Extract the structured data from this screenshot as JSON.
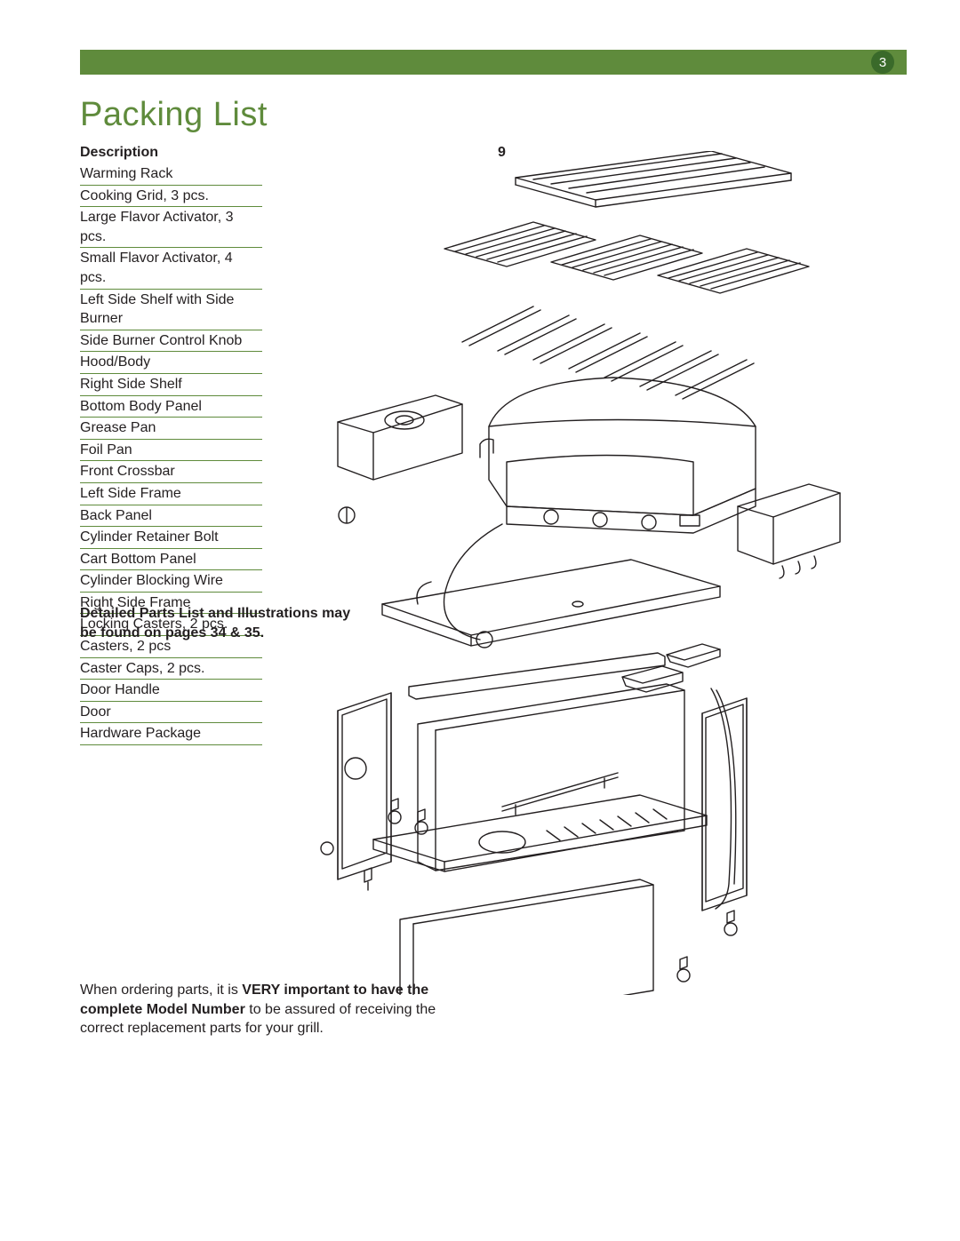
{
  "page": {
    "number": "3",
    "header_bar_color": "#5f8b3c",
    "circle_color": "#3a6a2a"
  },
  "title": "Packing List",
  "list": {
    "header": "Description",
    "items": [
      "Warming Rack",
      "Cooking Grid, 3 pcs.",
      "Large Flavor Activator, 3 pcs.",
      "Small Flavor Activator, 4 pcs.",
      "Left Side Shelf with Side Burner",
      "Side Burner Control Knob",
      "Hood/Body",
      "Right Side Shelf",
      "Bottom Body Panel",
      "Grease Pan",
      "Foil Pan",
      "Front Crossbar",
      "Left Side Frame",
      "Back Panel",
      "Cylinder Retainer Bolt",
      "Cart Bottom Panel",
      "Cylinder Blocking Wire",
      "Right Side Frame",
      "Locking Casters, 2 pcs.",
      "Casters, 2 pcs",
      "Caster Caps, 2 pcs.",
      "Door Handle",
      "Door",
      "Hardware Package"
    ]
  },
  "callout": {
    "nine": "9"
  },
  "detail_note": "Detailed Parts List and Illustrations may be found on pages 34 & 35.",
  "order_note": {
    "pre": "When ordering parts, it is ",
    "bold1": "VERY important to have the complete Model Number",
    "post": " to be assured of receiving the correct replacement parts for your grill."
  },
  "diagram": {
    "type": "exploded-view-line-drawing",
    "stroke": "#231f20",
    "stroke_width": 1.4,
    "background": "#ffffff"
  }
}
